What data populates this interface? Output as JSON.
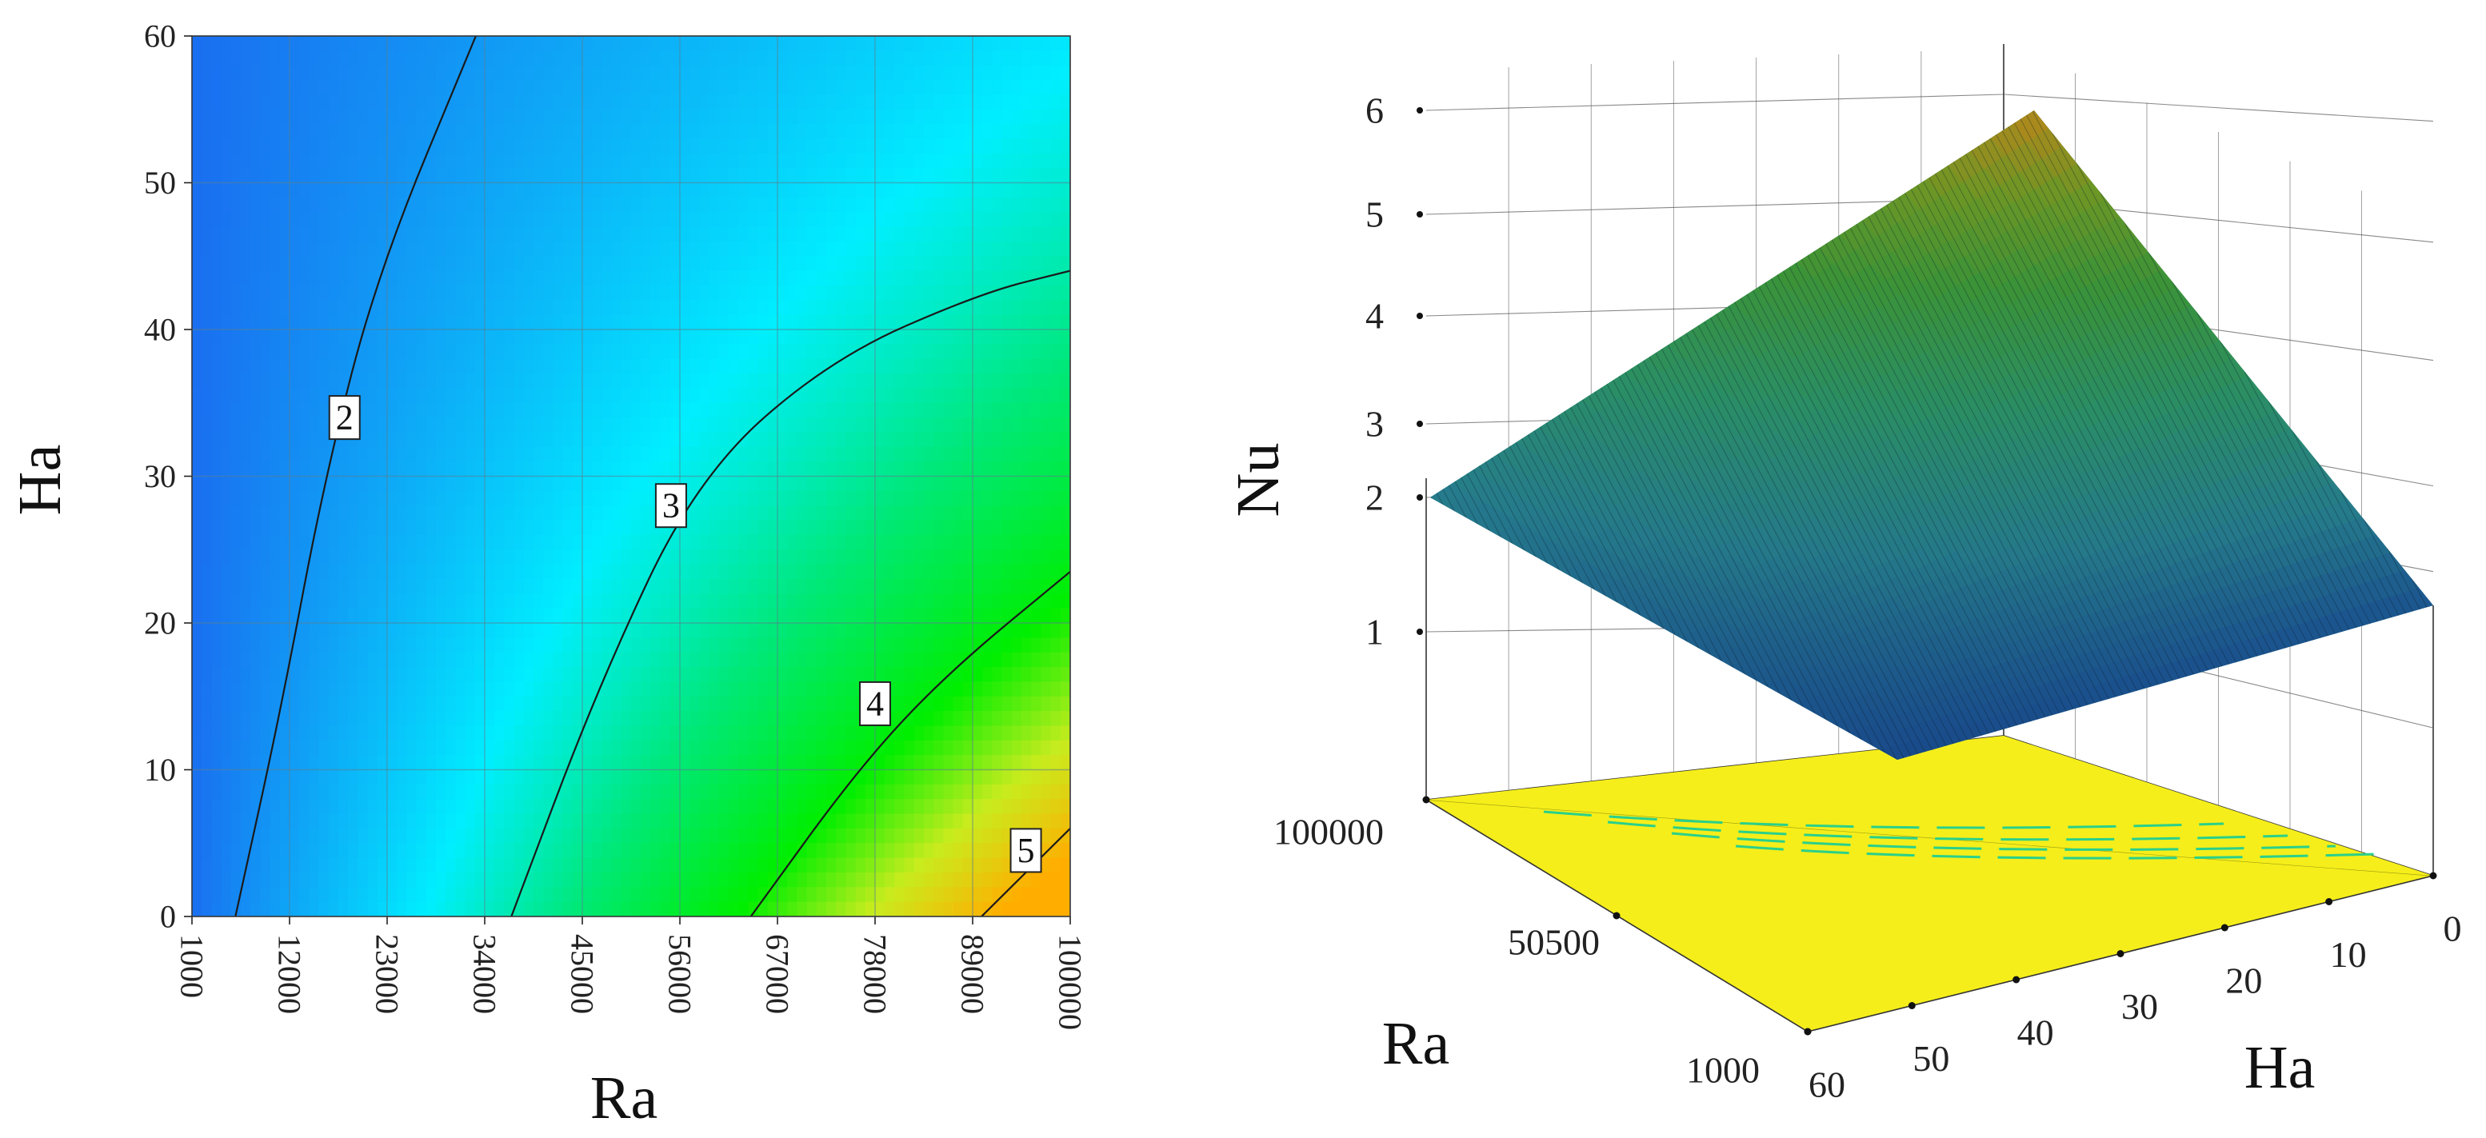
{
  "chart_data": [
    {
      "type": "heatmap",
      "subtype": "contour",
      "title": "",
      "xlabel": "Ra",
      "ylabel": "Ha",
      "xlim": [
        1000,
        100000
      ],
      "ylim": [
        0,
        60
      ],
      "x_ticks": [
        "1000",
        "12000",
        "23000",
        "34000",
        "45000",
        "56000",
        "67000",
        "78000",
        "89000",
        "100000"
      ],
      "y_ticks": [
        "0",
        "10",
        "20",
        "30",
        "40",
        "50",
        "60"
      ],
      "grid": true,
      "contour_lines": [
        {
          "level": "2",
          "points": [
            [
              5900,
              0
            ],
            [
              11000,
              14
            ],
            [
              16000,
              30
            ],
            [
              22000,
              44
            ],
            [
              33000,
              60
            ]
          ]
        },
        {
          "level": "3",
          "points": [
            [
              37000,
              0
            ],
            [
              47000,
              16
            ],
            [
              58000,
              30
            ],
            [
              73000,
              38
            ],
            [
              90000,
              42.5
            ],
            [
              100000,
              44
            ]
          ]
        },
        {
          "level": "4",
          "points": [
            [
              64000,
              0
            ],
            [
              76000,
              10
            ],
            [
              86000,
              16.5
            ],
            [
              100000,
              23.5
            ]
          ]
        },
        {
          "level": "5",
          "points": [
            [
              90000,
              0
            ],
            [
              100000,
              6
            ]
          ]
        }
      ],
      "contour_label_positions": [
        {
          "level": "2",
          "x": 18200,
          "y": 34
        },
        {
          "level": "3",
          "x": 55000,
          "y": 28
        },
        {
          "level": "4",
          "x": 78000,
          "y": 14.5
        },
        {
          "level": "5",
          "x": 95000,
          "y": 4.5
        }
      ],
      "colormap": [
        {
          "value": 1.4,
          "color": "#1a6ef0"
        },
        {
          "value": 2.6,
          "color": "#00eeff"
        },
        {
          "value": 3.3,
          "color": "#00e87a"
        },
        {
          "value": 4.1,
          "color": "#00ee00"
        },
        {
          "value": 4.7,
          "color": "#c8ec1e"
        },
        {
          "value": 5.3,
          "color": "#ffae00"
        }
      ]
    },
    {
      "type": "surface",
      "title": "",
      "xlabel": "Ha",
      "ylabel": "Ra",
      "zlabel": "Nu",
      "xlim": [
        0,
        60
      ],
      "ylim": [
        1000,
        100000
      ],
      "zlim": [
        1,
        6
      ],
      "x_ticks": [
        "0",
        "10",
        "20",
        "30",
        "40",
        "50",
        "60"
      ],
      "y_ticks": [
        "100000",
        "50500",
        "1000"
      ],
      "z_ticks": [
        "1",
        "2",
        "3",
        "4",
        "5",
        "6"
      ],
      "corner_values": [
        {
          "Ha": 0,
          "Ra": 100000,
          "Nu": 5.55
        },
        {
          "Ha": 60,
          "Ra": 100000,
          "Nu": 1.95
        },
        {
          "Ha": 0,
          "Ra": 1000,
          "Nu": 1.15
        },
        {
          "Ha": 60,
          "Ra": 1000,
          "Nu": 1.0
        }
      ],
      "surface_colormap": [
        {
          "value": 1.0,
          "color": "#1e5aa8"
        },
        {
          "value": 2.0,
          "color": "#2a8a9c"
        },
        {
          "value": 3.0,
          "color": "#2e9a6e"
        },
        {
          "value": 4.0,
          "color": "#3e9a3a"
        },
        {
          "value": 4.8,
          "color": "#6f9a26"
        },
        {
          "value": 5.55,
          "color": "#b8861a"
        }
      ],
      "floor_color": "#f5ee1a",
      "floor_contour_color": "#2ad08a"
    }
  ]
}
